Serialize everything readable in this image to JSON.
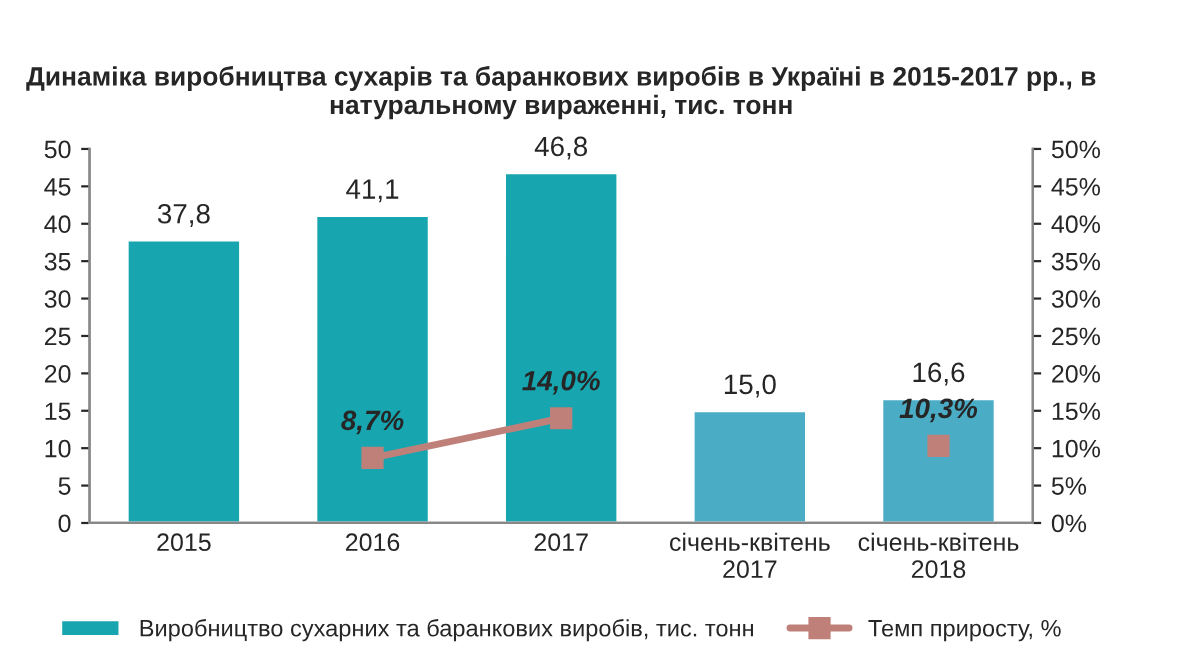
{
  "chart_data": {
    "type": "bar",
    "title": "Динаміка виробництва сухарів та баранкових виробів в Україні в 2015-2017 рр., в натуральному вираженні, тис. тонн",
    "categories": [
      "2015",
      "2016",
      "2017",
      "січень-квітень\n2017",
      "січень-квітень\n2018"
    ],
    "series": [
      {
        "name": "Виробництво сухарних та баранкових виробів, тис. тонн",
        "colors": [
          "#17a5b0",
          "#17a5b0",
          "#17a5b0",
          "#4bacc6",
          "#4bacc6"
        ],
        "values": [
          37.8,
          41.1,
          46.8,
          15.0,
          16.6
        ],
        "value_labels": [
          "37,8",
          "41,1",
          "46,8",
          "15,0",
          "16,6"
        ]
      },
      {
        "name": "Темп приросту, %",
        "type": "line",
        "axis": "y2",
        "color": "#c0807a",
        "values": [
          null,
          8.7,
          14.0,
          null,
          10.3
        ],
        "value_labels": [
          null,
          "8,7%",
          "14,0%",
          null,
          "10,3%"
        ]
      }
    ],
    "ylim": [
      0,
      50
    ],
    "yticks": [
      0,
      5,
      10,
      15,
      20,
      25,
      30,
      35,
      40,
      45,
      50
    ],
    "y2lim": [
      0,
      50
    ],
    "y2ticks": [
      {
        "value": 0,
        "label": "0%"
      },
      {
        "value": 5,
        "label": "5%"
      },
      {
        "value": 10,
        "label": "10%"
      },
      {
        "value": 15,
        "label": "15%"
      },
      {
        "value": 20,
        "label": "20%"
      },
      {
        "value": 25,
        "label": "25%"
      },
      {
        "value": 30,
        "label": "30%"
      },
      {
        "value": 35,
        "label": "35%"
      },
      {
        "value": 40,
        "label": "40%"
      },
      {
        "value": 45,
        "label": "45%"
      },
      {
        "value": 50,
        "label": "50%"
      }
    ],
    "legend": "bottom",
    "marker": "square",
    "line_style": "solid",
    "grid": false
  }
}
